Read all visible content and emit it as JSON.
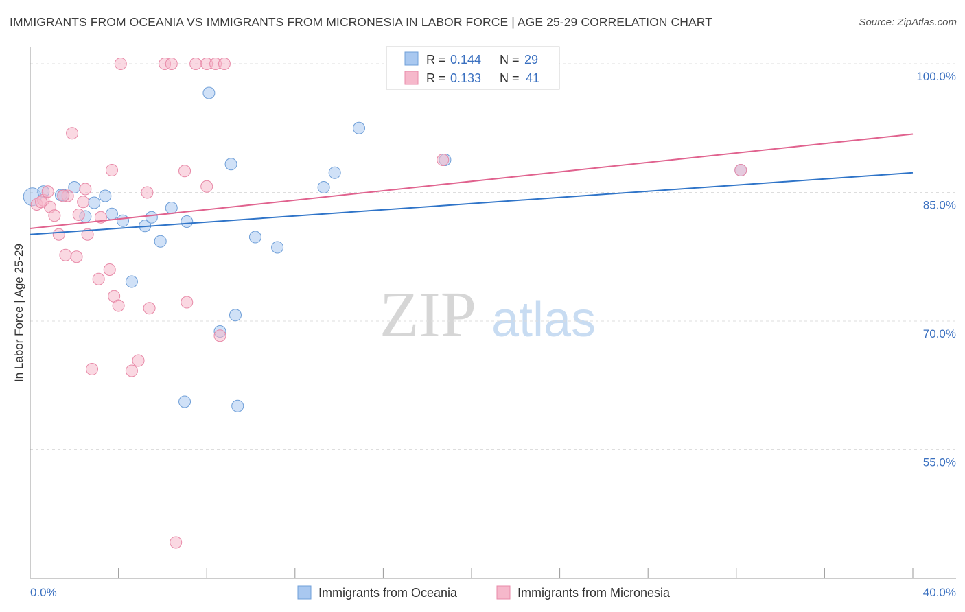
{
  "title": "IMMIGRANTS FROM OCEANIA VS IMMIGRANTS FROM MICRONESIA IN LABOR FORCE | AGE 25-29 CORRELATION CHART",
  "source": "Source: ZipAtlas.com",
  "watermark": {
    "zip": "ZIP",
    "atlas": "atlas"
  },
  "colors": {
    "oceania_fill": "#a9c8f0",
    "oceania_stroke": "#6f9fd8",
    "oceania_line": "#2f74c8",
    "micronesia_fill": "#f6b8cb",
    "micronesia_stroke": "#e88aa8",
    "micronesia_line": "#e0628e",
    "accent_text": "#3a70c0",
    "grid": "#dddddd"
  },
  "legend_box": {
    "r_label": "R =",
    "n_label": "N =",
    "rows": [
      {
        "series": "oceania",
        "r": "0.144",
        "n": "29"
      },
      {
        "series": "micronesia",
        "r": "0.133",
        "n": "41"
      }
    ]
  },
  "chart_data": {
    "type": "scatter",
    "title": "IMMIGRANTS FROM OCEANIA VS IMMIGRANTS FROM MICRONESIA IN LABOR FORCE | AGE 25-29 CORRELATION CHART",
    "xlabel": "",
    "ylabel": "In Labor Force | Age 25-29",
    "xlim": [
      0,
      40
    ],
    "ylim": [
      40,
      102
    ],
    "x_tick_labels": {
      "left": "0.0%",
      "right": "40.0%"
    },
    "y_ticks": [
      {
        "value": 100,
        "label": "100.0%"
      },
      {
        "value": 85,
        "label": "85.0%"
      },
      {
        "value": 70,
        "label": "70.0%"
      },
      {
        "value": 55,
        "label": "55.0%"
      }
    ],
    "grid": true,
    "legend": "bottom-center",
    "series": [
      {
        "name": "Immigrants from Oceania",
        "color": "#a9c8f0",
        "trend": {
          "x": [
            0,
            40
          ],
          "y": [
            80.1,
            87.3
          ]
        },
        "points": [
          [
            0.1,
            84.5
          ],
          [
            0.6,
            85.1
          ],
          [
            1.5,
            84.7
          ],
          [
            2.0,
            85.6
          ],
          [
            2.5,
            82.2
          ],
          [
            2.9,
            83.8
          ],
          [
            3.4,
            84.6
          ],
          [
            3.7,
            82.5
          ],
          [
            4.2,
            81.7
          ],
          [
            5.2,
            81.1
          ],
          [
            5.5,
            82.1
          ],
          [
            5.9,
            79.3
          ],
          [
            6.4,
            83.2
          ],
          [
            7.1,
            81.6
          ],
          [
            8.1,
            96.6
          ],
          [
            9.1,
            88.3
          ],
          [
            9.3,
            70.7
          ],
          [
            8.6,
            68.8
          ],
          [
            4.6,
            74.6
          ],
          [
            10.2,
            79.8
          ],
          [
            11.2,
            78.6
          ],
          [
            13.3,
            85.6
          ],
          [
            13.8,
            87.3
          ],
          [
            14.9,
            92.5
          ],
          [
            18.8,
            88.8
          ],
          [
            32.2,
            87.6
          ],
          [
            7.0,
            60.6
          ],
          [
            9.4,
            60.1
          ],
          [
            1.4,
            84.7
          ]
        ]
      },
      {
        "name": "Immigrants from Micronesia",
        "color": "#f6b8cb",
        "trend": {
          "x": [
            0,
            40
          ],
          "y": [
            80.8,
            91.8
          ]
        },
        "points": [
          [
            0.3,
            83.6
          ],
          [
            0.6,
            84.1
          ],
          [
            0.8,
            85.1
          ],
          [
            0.9,
            83.3
          ],
          [
            1.1,
            82.3
          ],
          [
            1.3,
            80.1
          ],
          [
            1.6,
            77.7
          ],
          [
            1.7,
            84.6
          ],
          [
            1.9,
            91.9
          ],
          [
            2.1,
            77.5
          ],
          [
            2.2,
            82.4
          ],
          [
            2.4,
            83.9
          ],
          [
            2.5,
            85.4
          ],
          [
            2.6,
            80.1
          ],
          [
            2.8,
            64.4
          ],
          [
            3.1,
            74.9
          ],
          [
            3.2,
            82.1
          ],
          [
            3.6,
            76.0
          ],
          [
            3.7,
            87.6
          ],
          [
            3.8,
            72.9
          ],
          [
            4.0,
            71.8
          ],
          [
            4.1,
            100.0
          ],
          [
            4.6,
            64.2
          ],
          [
            4.9,
            65.4
          ],
          [
            5.3,
            85.0
          ],
          [
            5.4,
            71.5
          ],
          [
            6.1,
            100.0
          ],
          [
            6.4,
            100.0
          ],
          [
            6.6,
            44.2
          ],
          [
            7.0,
            87.5
          ],
          [
            7.1,
            72.2
          ],
          [
            7.5,
            100.0
          ],
          [
            8.0,
            85.7
          ],
          [
            8.0,
            100.0
          ],
          [
            8.4,
            100.0
          ],
          [
            8.8,
            100.0
          ],
          [
            8.6,
            68.3
          ],
          [
            18.7,
            88.8
          ],
          [
            32.2,
            87.6
          ],
          [
            0.5,
            83.9
          ],
          [
            1.5,
            84.6
          ]
        ]
      }
    ]
  },
  "bottom_legend": {
    "items": [
      {
        "series": "oceania",
        "label": "Immigrants from Oceania"
      },
      {
        "series": "micronesia",
        "label": "Immigrants from Micronesia"
      }
    ]
  }
}
